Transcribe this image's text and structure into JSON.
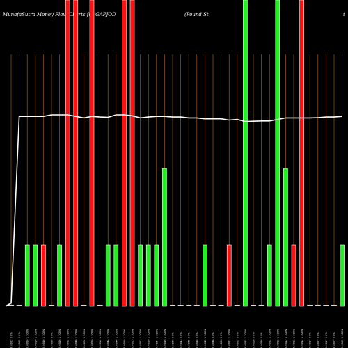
{
  "header": {
    "title_left": "MunafaSutra  Money Flow  Charts for GAPJOD",
    "title_right": "(Pound St",
    "title_far_right": "t"
  },
  "chart_data": {
    "type": "bar",
    "title": "MunafaSutra  Money Flow  Charts for GAPJOD",
    "subtitle": "(Pound St",
    "colors": {
      "up": "#22ee22",
      "down": "#ff1111",
      "flat": "#dddddd",
      "line": "#ffffff",
      "grid": "#b86a00",
      "background": "#000000"
    },
    "categories": [
      "0.0022 0 0%",
      "0.0022 0 0%",
      "0.0010 1 100%",
      "0.0010 1 100%",
      "0.0018 1 100%",
      "0.0028 0 0%",
      "0.0016 1 100%",
      "0.0012 1 100%",
      "0.0046 1 100%",
      "0.0020 1 100%",
      "0.0010 1 100%",
      "0.0012 1 100%",
      "0.0044 1 100%",
      "0.0044 1 100%",
      "0.0010 1 100%",
      "0.0023 1 100%",
      "0.0012 1 100%",
      "0.0026 1 100%",
      "0.0044 1 100%",
      "0.0016 1 100%",
      "0.0040 0 0%",
      "0.0043 0 0%",
      "0.0045 0 0%",
      "0.0038 0 0%",
      "0.0045 1 100%",
      "0.0046 0 0%",
      "0.0026 0 0%",
      "0.0022 1 100%",
      "0.0022 0 0%",
      "0.0025 1 100%",
      "0.0026 0 0%",
      "0.0026 0 0%",
      "0.0012 1 100%",
      "0.0012 1 100%",
      "0.0012 1 100%",
      "0.0012 1 100%",
      "0.0012 1 100%",
      "0.0017 0 0%",
      "0.0017 0 0%",
      "0.0017 0 0%",
      "0.0017 0 0%",
      "0.0022 1 100%"
    ],
    "series": [
      {
        "kind": "bar",
        "directions": [
          "flat",
          "flat",
          "up",
          "up",
          "down",
          "flat",
          "up",
          "down",
          "down",
          "flat",
          "down",
          "flat",
          "up",
          "up",
          "down",
          "down",
          "up",
          "up",
          "up",
          "up",
          "flat",
          "flat",
          "flat",
          "flat",
          "up",
          "flat",
          "flat",
          "down",
          "flat",
          "up",
          "flat",
          "flat",
          "up",
          "up",
          "up",
          "down",
          "down",
          "flat",
          "flat",
          "flat",
          "flat",
          "up"
        ],
        "values": [
          0.01,
          0.01,
          0.2,
          0.2,
          0.2,
          0.01,
          0.2,
          1.0,
          1.0,
          0.01,
          1.0,
          0.01,
          0.2,
          0.2,
          1.0,
          1.0,
          0.2,
          0.2,
          0.2,
          0.45,
          0.01,
          0.01,
          0.01,
          0.01,
          0.2,
          0.01,
          0.01,
          0.2,
          0.01,
          1.0,
          0.01,
          0.01,
          0.2,
          1.0,
          0.45,
          0.2,
          1.0,
          0.01,
          0.01,
          0.01,
          0.01,
          0.2
        ]
      },
      {
        "kind": "line",
        "values": [
          0.01,
          0.62,
          0.62,
          0.62,
          0.62,
          0.625,
          0.625,
          0.625,
          0.62,
          0.615,
          0.62,
          0.618,
          0.617,
          0.625,
          0.625,
          0.622,
          0.615,
          0.618,
          0.62,
          0.62,
          0.618,
          0.618,
          0.615,
          0.615,
          0.612,
          0.612,
          0.612,
          0.608,
          0.61,
          0.603,
          0.604,
          0.605,
          0.605,
          0.61,
          0.615,
          0.615,
          0.615,
          0.615,
          0.616,
          0.618,
          0.618,
          0.62
        ]
      }
    ],
    "ylim": [
      0,
      1
    ],
    "grid": "vertical",
    "legend": "none"
  }
}
